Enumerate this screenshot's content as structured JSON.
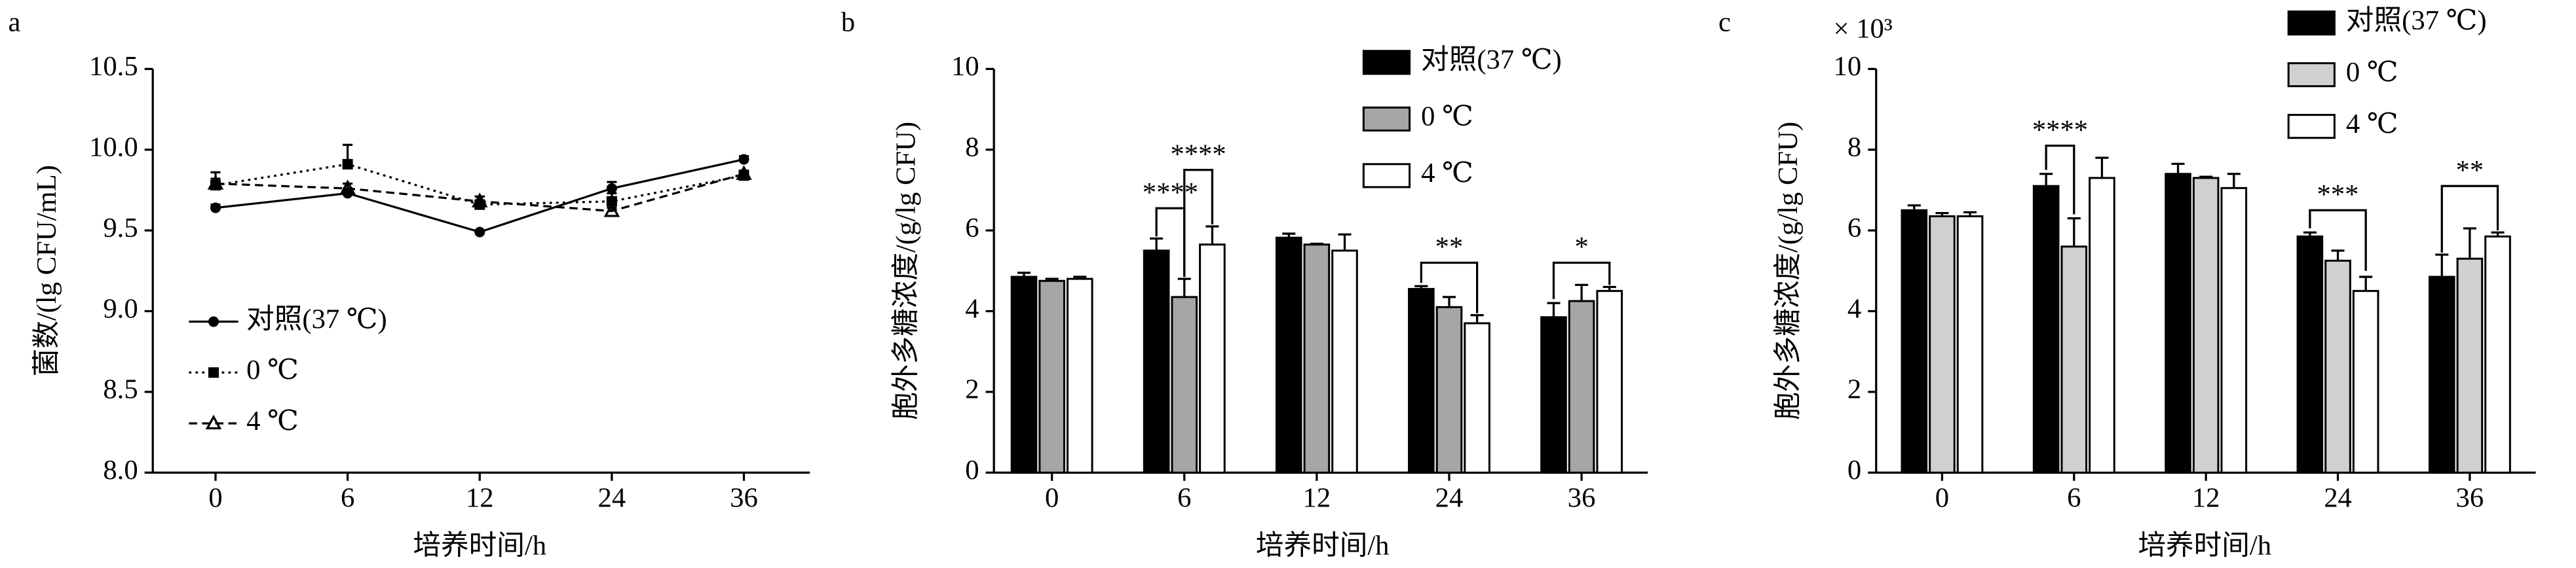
{
  "chart_data": [
    {
      "type": "line",
      "panel": "a",
      "x_label": "培养时间/h",
      "y_label": "菌数/(lg CFU/mL)",
      "categories": [
        "0",
        "6",
        "12",
        "24",
        "36"
      ],
      "ylim": [
        8,
        10.5
      ],
      "yticks": [
        {
          "value": 8,
          "label": "8.0"
        },
        8.5,
        {
          "value": 9,
          "label": "9.0"
        },
        9.5,
        {
          "value": 10,
          "label": "10.0"
        },
        10.5
      ],
      "grid": false,
      "series": [
        {
          "name": "对照(37 ℃)",
          "color": "#000000",
          "dash": "solid",
          "marker": "circle",
          "values": [
            9.64,
            9.73,
            9.49,
            9.76,
            9.94
          ],
          "errors": [
            0.02,
            0.03,
            0.01,
            0.04,
            0.02
          ]
        },
        {
          "name": "0 ℃",
          "color": "#000000",
          "dash": "dotted",
          "marker": "square",
          "values": [
            9.78,
            9.91,
            9.66,
            9.68,
            9.84
          ],
          "errors": [
            0.08,
            0.12,
            0.05,
            0.05,
            0.02
          ]
        },
        {
          "name": "4 ℃",
          "color": "#000000",
          "dash": "dashed",
          "marker": "triangle",
          "values": [
            9.79,
            9.76,
            9.68,
            9.62,
            9.85
          ],
          "errors": [
            0.03,
            0.03,
            0.03,
            0.02,
            0.02
          ]
        }
      ]
    },
    {
      "type": "bar",
      "panel": "b",
      "x_label": "培养时间/h",
      "y_label": "胞外多糖浓度/(g/lg CFU)",
      "categories": [
        "0",
        "6",
        "12",
        "24",
        "36"
      ],
      "ylim": [
        0,
        10
      ],
      "yticks": [
        0,
        2,
        4,
        6,
        8,
        10
      ],
      "grid": false,
      "series": [
        {
          "name": "对照(37 ℃)",
          "color": "#000000",
          "values": [
            4.85,
            5.5,
            5.82,
            4.55,
            3.85
          ],
          "errors": [
            0.1,
            0.3,
            0.1,
            0.07,
            0.35
          ]
        },
        {
          "name": "0 ℃",
          "color": "#a6a6a6",
          "values": [
            4.75,
            4.35,
            5.65,
            4.1,
            4.25
          ],
          "errors": [
            0.05,
            0.45,
            0.02,
            0.25,
            0.4
          ]
        },
        {
          "name": "4 ℃",
          "color": "#ffffff",
          "values": [
            4.8,
            5.65,
            5.5,
            3.7,
            4.5
          ],
          "errors": [
            0.05,
            0.45,
            0.4,
            0.2,
            0.1
          ]
        }
      ],
      "annotations": [
        "****",
        "****",
        "**",
        "*"
      ]
    },
    {
      "type": "bar",
      "panel": "c",
      "x_label": "培养时间/h",
      "y_label": "胞外多糖浓度/(g/lg CFU)",
      "y_unit": "× 10³",
      "categories": [
        "0",
        "6",
        "12",
        "24",
        "36"
      ],
      "ylim": [
        0,
        10
      ],
      "yticks": [
        0,
        2,
        4,
        6,
        8,
        10
      ],
      "grid": false,
      "series": [
        {
          "name": "对照(37 ℃)",
          "color": "#000000",
          "values": [
            6.5,
            7.1,
            7.4,
            5.85,
            4.85
          ],
          "errors": [
            0.12,
            0.3,
            0.25,
            0.1,
            0.55
          ]
        },
        {
          "name": "0 ℃",
          "color": "#d0d0d0",
          "values": [
            6.35,
            5.6,
            7.3,
            5.25,
            5.3
          ],
          "errors": [
            0.08,
            0.7,
            0.03,
            0.25,
            0.75
          ]
        },
        {
          "name": "4 ℃",
          "color": "#ffffff",
          "values": [
            6.35,
            7.3,
            7.05,
            4.5,
            5.85
          ],
          "errors": [
            0.1,
            0.5,
            0.35,
            0.35,
            0.1
          ]
        }
      ],
      "annotations": [
        "****",
        "***",
        "**"
      ]
    }
  ]
}
